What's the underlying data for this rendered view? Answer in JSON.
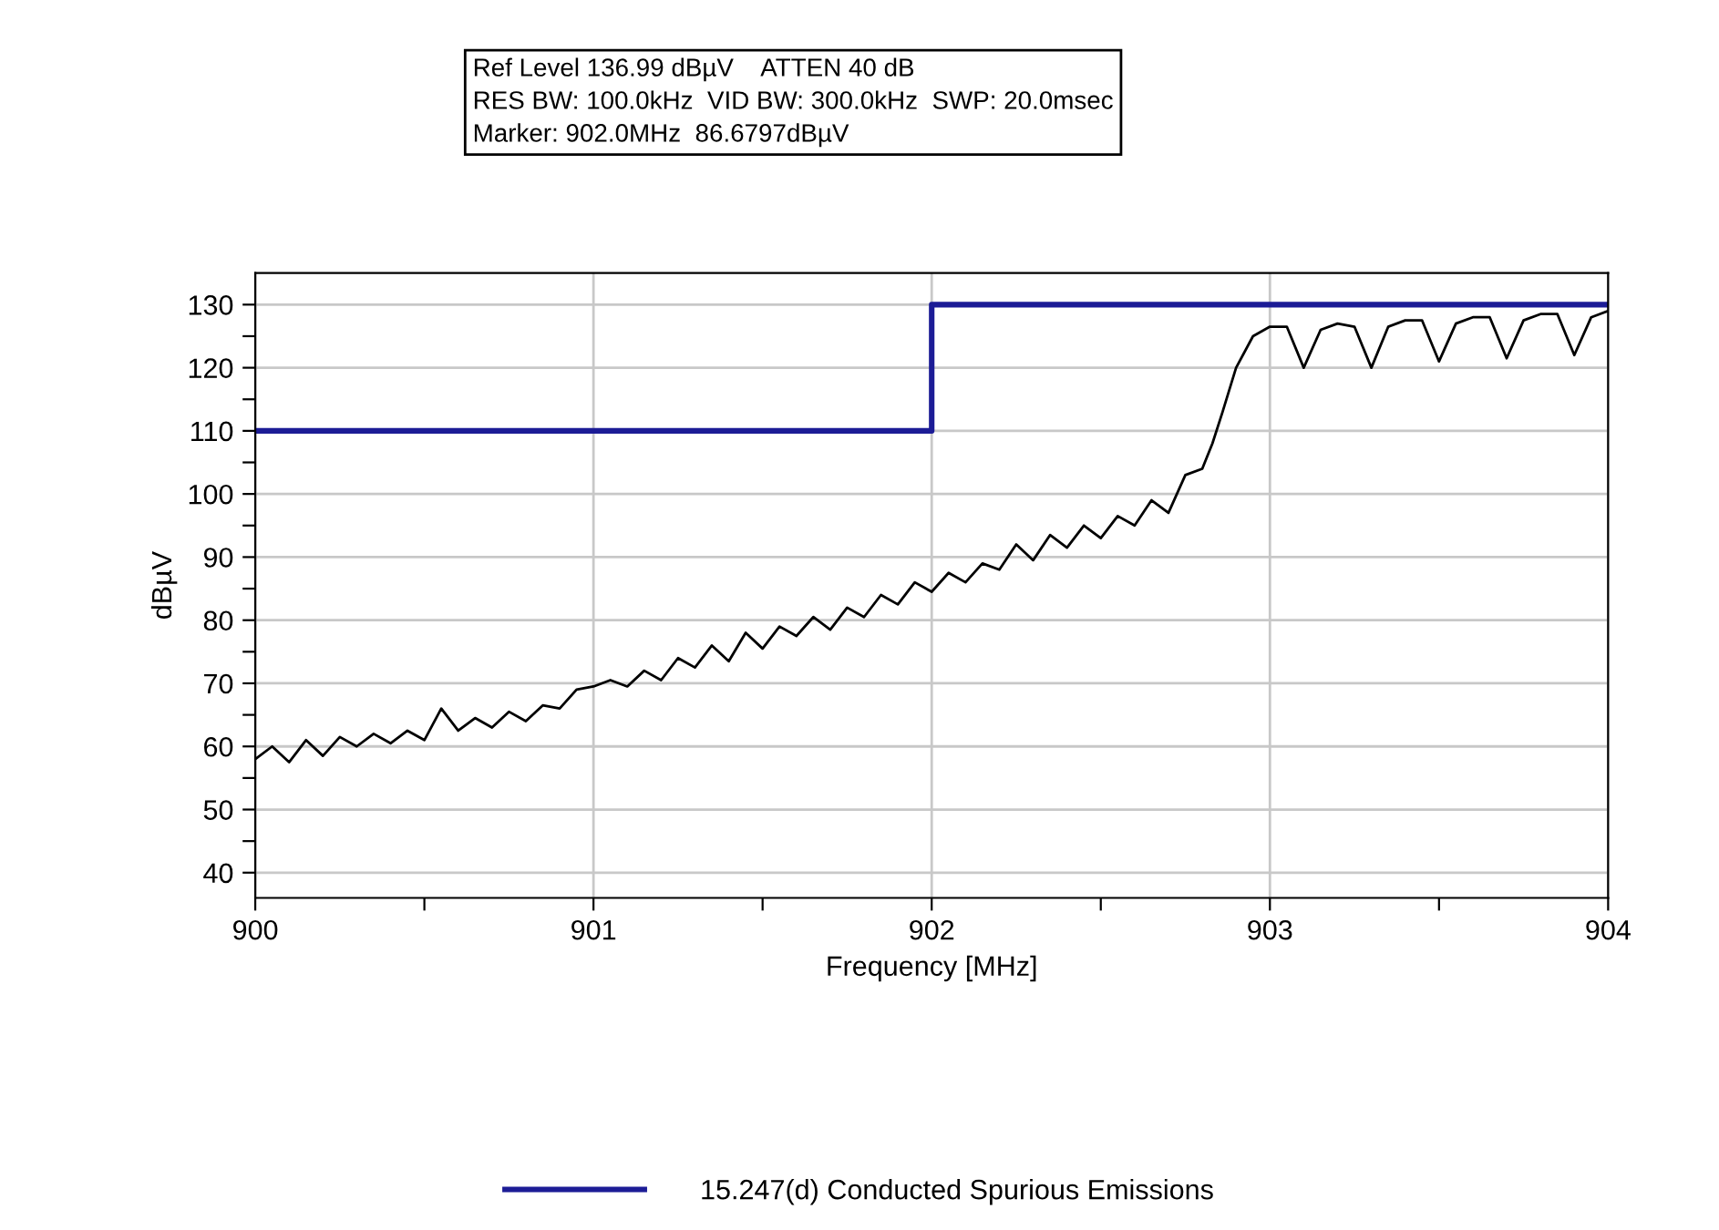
{
  "chart_data": {
    "type": "line",
    "annotations": [
      "Ref Level 136.99 dBµV    ATTEN 40 dB",
      "RES BW: 100.0kHz  VID BW: 300.0kHz  SWP: 20.0msec",
      "Marker: 902.0MHz  86.6797dBµV"
    ],
    "xlabel": "Frequency [MHz]",
    "ylabel": "dBµV",
    "xlim": [
      900,
      904
    ],
    "xticks": [
      900,
      {
        "value": 900.5,
        "label": null
      },
      901,
      {
        "value": 901.5,
        "label": null
      },
      902,
      {
        "value": 902.5,
        "label": null
      },
      903,
      {
        "value": 903.5,
        "label": null
      },
      904
    ],
    "ylim": [
      36,
      135
    ],
    "yticks": [
      40,
      {
        "value": 45,
        "label": null
      },
      50,
      {
        "value": 55,
        "label": null
      },
      60,
      {
        "value": 65,
        "label": null
      },
      70,
      {
        "value": 75,
        "label": null
      },
      80,
      {
        "value": 85,
        "label": null
      },
      90,
      {
        "value": 95,
        "label": null
      },
      100,
      {
        "value": 105,
        "label": null
      },
      110,
      {
        "value": 115,
        "label": null
      },
      120,
      {
        "value": 125,
        "label": null
      },
      130
    ],
    "grid": true,
    "legend": "bottom",
    "marker": "none",
    "line_style": "solid",
    "series": [
      {
        "color": "#000000",
        "x": [
          900.0,
          900.05,
          900.1,
          900.15,
          900.2,
          900.25,
          900.3,
          900.35,
          900.4,
          900.45,
          900.5,
          900.55,
          900.6,
          900.65,
          900.7,
          900.75,
          900.8,
          900.85,
          900.9,
          900.95,
          901.0,
          901.05,
          901.1,
          901.15,
          901.2,
          901.25,
          901.3,
          901.35,
          901.4,
          901.45,
          901.5,
          901.55,
          901.6,
          901.65,
          901.7,
          901.75,
          901.8,
          901.85,
          901.9,
          901.95,
          902.0,
          902.05,
          902.1,
          902.15,
          902.2,
          902.25,
          902.3,
          902.35,
          902.4,
          902.45,
          902.5,
          902.55,
          902.6,
          902.65,
          902.7,
          902.75,
          902.8,
          902.83,
          902.86,
          902.9,
          902.95,
          903.0,
          903.05,
          903.1,
          903.15,
          903.2,
          903.25,
          903.3,
          903.35,
          903.4,
          903.45,
          903.5,
          903.55,
          903.6,
          903.65,
          903.7,
          903.75,
          903.8,
          903.85,
          903.9,
          903.95,
          904.0
        ],
        "values": [
          58,
          60,
          57.5,
          61,
          58.5,
          61.5,
          60,
          62,
          60.5,
          62.5,
          61,
          66,
          62.5,
          64.5,
          63,
          65.5,
          64,
          66.5,
          66,
          69,
          69.5,
          70.5,
          69.5,
          72,
          70.5,
          74,
          72.5,
          76,
          73.5,
          78,
          75.5,
          79,
          77.5,
          80.5,
          78.5,
          82,
          80.5,
          84,
          82.5,
          86,
          84.5,
          87.5,
          86,
          89,
          88,
          92,
          89.5,
          93.5,
          91.5,
          95,
          93,
          96.5,
          95,
          99,
          97,
          103,
          104,
          108,
          113,
          120,
          125,
          126.5,
          126.5,
          120,
          126,
          127,
          126.5,
          120,
          126.5,
          127.5,
          127.5,
          121,
          127,
          128,
          128,
          121.5,
          127.5,
          128.5,
          128.5,
          122,
          128,
          129
        ]
      },
      {
        "name": "15.247(d) Conducted Spurious Emissions",
        "color": "#1c1c96",
        "x": [
          900,
          902,
          902,
          904
        ],
        "values": [
          110,
          110,
          130,
          130
        ]
      }
    ]
  }
}
